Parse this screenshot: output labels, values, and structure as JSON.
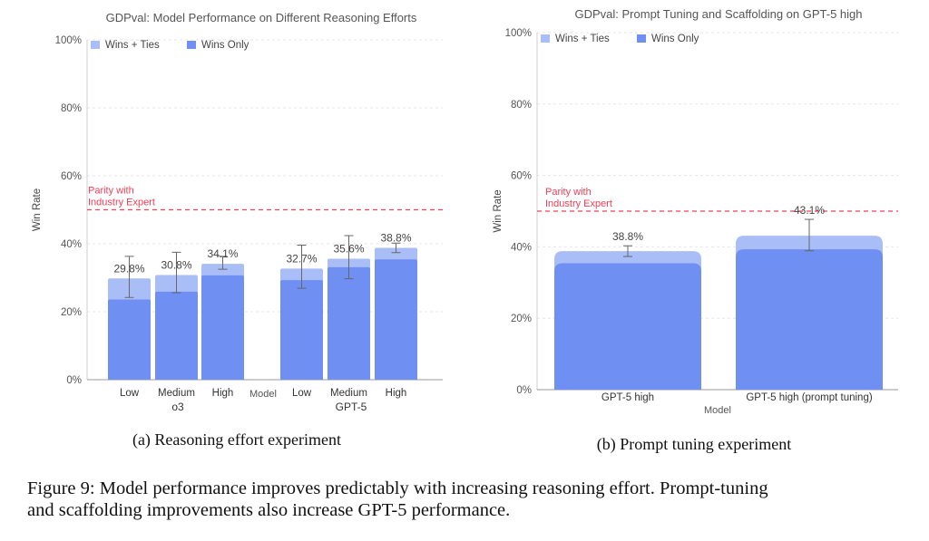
{
  "chart_data": [
    {
      "type": "bar",
      "title": "GDPval: Model Performance on Different Reasoning Efforts",
      "xlabel": "Model",
      "ylabel": "Win Rate",
      "ylim": [
        0,
        100
      ],
      "yticks": [
        "0%",
        "20%",
        "40%",
        "60%",
        "80%",
        "100%"
      ],
      "categories": [
        "Low",
        "Medium",
        "High",
        "Low",
        "Medium",
        "High"
      ],
      "groups": [
        {
          "label": "o3",
          "categories": [
            "Low",
            "Medium",
            "High"
          ]
        },
        {
          "label": "GPT-5",
          "categories": [
            "Low",
            "Medium",
            "High"
          ]
        }
      ],
      "series": [
        {
          "name": "Wins + Ties",
          "values": [
            29.8,
            30.8,
            34.1,
            32.7,
            35.6,
            38.8
          ],
          "error_low": [
            24.2,
            25.6,
            32.5,
            26.9,
            29.7,
            37.4
          ],
          "error_high": [
            36.3,
            37.5,
            36.3,
            39.6,
            42.4,
            40.2
          ]
        },
        {
          "name": "Wins Only",
          "values": [
            23.6,
            25.9,
            30.7,
            29.3,
            33.1,
            35.4
          ]
        }
      ],
      "data_labels": [
        "29.8%",
        "30.8%",
        "34.1%",
        "32.7%",
        "35.6%",
        "38.8%"
      ],
      "reference_line": {
        "value": 50,
        "label_line1": "Parity with",
        "label_line2": "Industry Expert"
      },
      "grid": true,
      "legend": "top-left",
      "colors": {
        "wins_ties": "#a9bdf7",
        "wins_only": "#6f8ff3",
        "parity": "#ef4056"
      },
      "caption": "(a) Reasoning effort experiment"
    },
    {
      "type": "bar",
      "title": "GDPval: Prompt Tuning and Scaffolding on GPT-5 high",
      "xlabel": "Model",
      "ylabel": "Win Rate",
      "ylim": [
        0,
        100
      ],
      "yticks": [
        "0%",
        "20%",
        "40%",
        "60%",
        "80%",
        "100%"
      ],
      "categories": [
        "GPT-5 high",
        "GPT-5 high (prompt tuning)"
      ],
      "series": [
        {
          "name": "Wins + Ties",
          "values": [
            38.8,
            43.1
          ],
          "error_low": [
            37.3,
            38.9
          ],
          "error_high": [
            40.3,
            47.7
          ]
        },
        {
          "name": "Wins Only",
          "values": [
            35.4,
            39.3
          ]
        }
      ],
      "data_labels": [
        "38.8%",
        "43.1%"
      ],
      "reference_line": {
        "value": 50,
        "label_line1": "Parity with",
        "label_line2": "Industry Expert"
      },
      "grid": true,
      "legend": "top-left",
      "colors": {
        "wins_ties": "#a9bdf7",
        "wins_only": "#6f8ff3",
        "parity": "#ef4056"
      },
      "caption": "(b) Prompt tuning experiment"
    }
  ],
  "figure": {
    "caption_line1": "Figure 9: Model performance improves predictably with increasing reasoning effort. Prompt-tuning",
    "caption_line2": "and scaffolding improvements also increase GPT-5 performance."
  }
}
